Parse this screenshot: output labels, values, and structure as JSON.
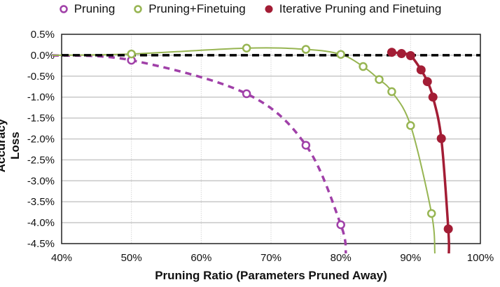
{
  "chart_data": {
    "type": "line",
    "title": "",
    "xlabel": "Pruning Ratio (Parameters Pruned Away)",
    "ylabel": "Accuracy Loss",
    "xlim": [
      40,
      100
    ],
    "ylim": [
      -4.5,
      0.5
    ],
    "x_ticks": [
      "40%",
      "50%",
      "60%",
      "70%",
      "80%",
      "90%",
      "100%"
    ],
    "y_ticks": [
      "0.5%",
      "0.0%",
      "-0.5%",
      "-1.0%",
      "-1.5%",
      "-2.0%",
      "-2.5%",
      "-3.0%",
      "-3.5%",
      "-4.0%",
      "-4.5%"
    ],
    "grid": true,
    "legend_position": "top",
    "reference_line": {
      "y": 0,
      "style": "dashed",
      "color": "#000000"
    },
    "series": [
      {
        "name": "Pruning",
        "color": "#a040a8",
        "marker": "open-circle",
        "line_style": "dashed",
        "x": [
          50,
          66.5,
          75,
          80
        ],
        "y": [
          -0.12,
          -0.92,
          -2.15,
          -4.05
        ]
      },
      {
        "name": "Pruning+Finetuing",
        "color": "#97b552",
        "marker": "open-circle",
        "line_style": "solid",
        "x": [
          50,
          66.5,
          75,
          80,
          83.2,
          85.5,
          87.3,
          90,
          93
        ],
        "y": [
          0.03,
          0.17,
          0.14,
          0.02,
          -0.27,
          -0.58,
          -0.87,
          -1.68,
          -3.78
        ]
      },
      {
        "name": "Iterative Pruning and Finetuing",
        "color": "#a31d35",
        "marker": "filled-circle",
        "line_style": "solid",
        "x": [
          87.3,
          88.7,
          90,
          91.5,
          92.4,
          93.2,
          94.4,
          95.4
        ],
        "y": [
          0.07,
          0.04,
          -0.01,
          -0.35,
          -0.63,
          -1.0,
          -1.99,
          -4.15
        ]
      }
    ]
  },
  "legend": {
    "items": [
      "Pruning",
      "Pruning+Finetuing",
      "Iterative Pruning and Finetuing"
    ]
  },
  "axes": {
    "xlabel": "Pruning Ratio (Parameters Pruned Away)",
    "ylabel": "Accuracy Loss"
  }
}
